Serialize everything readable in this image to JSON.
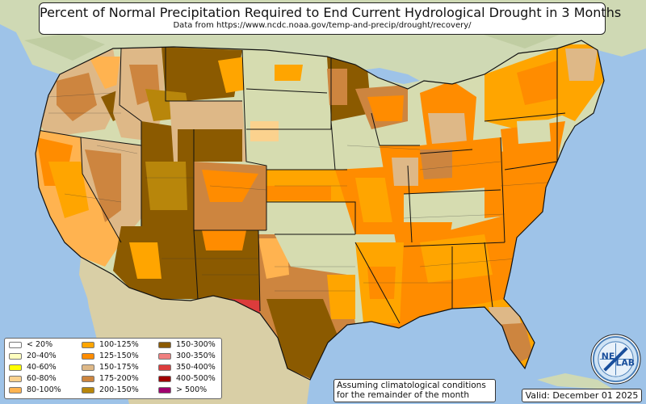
{
  "title": "Percent of Normal Precipitation Required to End Current Hydrological Drought in 3 Months",
  "subtitle": "Data from https://www.ncdc.noaa.gov/temp-and-precip/drought/recovery/",
  "legend": {
    "items": [
      {
        "label": "< 20%",
        "color": "#ffffff"
      },
      {
        "label": "20-40%",
        "color": "#ffffbf"
      },
      {
        "label": "40-60%",
        "color": "#ffff00"
      },
      {
        "label": "60-80%",
        "color": "#fbd28e"
      },
      {
        "label": "80-100%",
        "color": "#ffb350"
      },
      {
        "label": "100-125%",
        "color": "#ffa500"
      },
      {
        "label": "125-150%",
        "color": "#ff8c00"
      },
      {
        "label": "150-175%",
        "color": "#deb887"
      },
      {
        "label": "175-200%",
        "color": "#cd853f"
      },
      {
        "label": "200-150%",
        "color": "#b8860b"
      },
      {
        "label": "150-300%",
        "color": "#8b5a00"
      },
      {
        "label": "300-350%",
        "color": "#f08080"
      },
      {
        "label": "350-400%",
        "color": "#dc3c3c"
      },
      {
        "label": "400-500%",
        "color": "#a00000"
      },
      {
        "label": "> 500%",
        "color": "#a0006e"
      }
    ]
  },
  "note": {
    "line1": "Assuming climatological conditions",
    "line2": "for the remainder of the month"
  },
  "valid": "Valid: December 01 2025",
  "logo": {
    "text_ne": "NE",
    "text_lab": "LAB"
  },
  "colors": {
    "water": "#9ec3e8",
    "land_us": "#d6dcb0",
    "land_canada": "#cfd9b4",
    "land_mexico": "#d9cfa6",
    "state_border": "#111111"
  }
}
